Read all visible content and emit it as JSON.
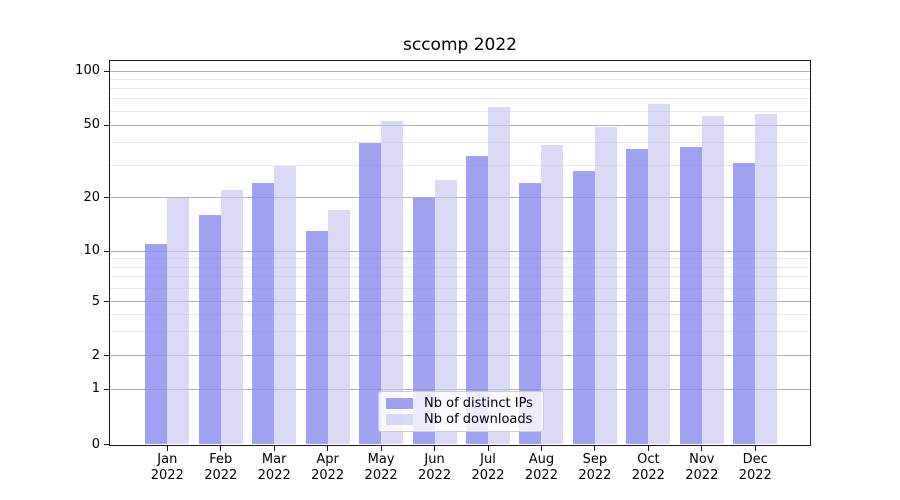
{
  "title": "sccomp 2022",
  "chart_data": {
    "type": "bar",
    "title": "sccomp 2022",
    "categories": [
      "Jan 2022",
      "Feb 2022",
      "Mar 2022",
      "Apr 2022",
      "May 2022",
      "Jun 2022",
      "Jul 2022",
      "Aug 2022",
      "Sep 2022",
      "Oct 2022",
      "Nov 2022",
      "Dec 2022"
    ],
    "series": [
      {
        "name": "Nb of distinct IPs",
        "color": "rgba(137,137,240,0.8)",
        "values": [
          11,
          16,
          24,
          13,
          40,
          20,
          34,
          24,
          28,
          37,
          38,
          31
        ]
      },
      {
        "name": "Nb of downloads",
        "color": "rgba(193,193,242,0.6)",
        "values": [
          20,
          22,
          30,
          17,
          53,
          25,
          63,
          39,
          49,
          66,
          56,
          58
        ]
      }
    ],
    "xlabel": "",
    "ylabel": "",
    "y_scale": "symlog",
    "yticks": [
      0,
      1,
      2,
      5,
      10,
      20,
      50,
      100
    ],
    "y_minor_ticks": [
      3,
      4,
      6,
      7,
      8,
      9,
      30,
      40,
      60,
      70,
      80,
      90
    ],
    "ylim": [
      0,
      110
    ],
    "grid": true,
    "legend_position": "lower center"
  },
  "colors": {
    "bar_distinct_ips": "rgba(137,137,240,0.8)",
    "bar_downloads": "rgba(193,193,242,0.6)",
    "grid_major": "#b1b1b9",
    "grid_minor": "#e9e9ed",
    "spine": "#1a1a1a"
  }
}
